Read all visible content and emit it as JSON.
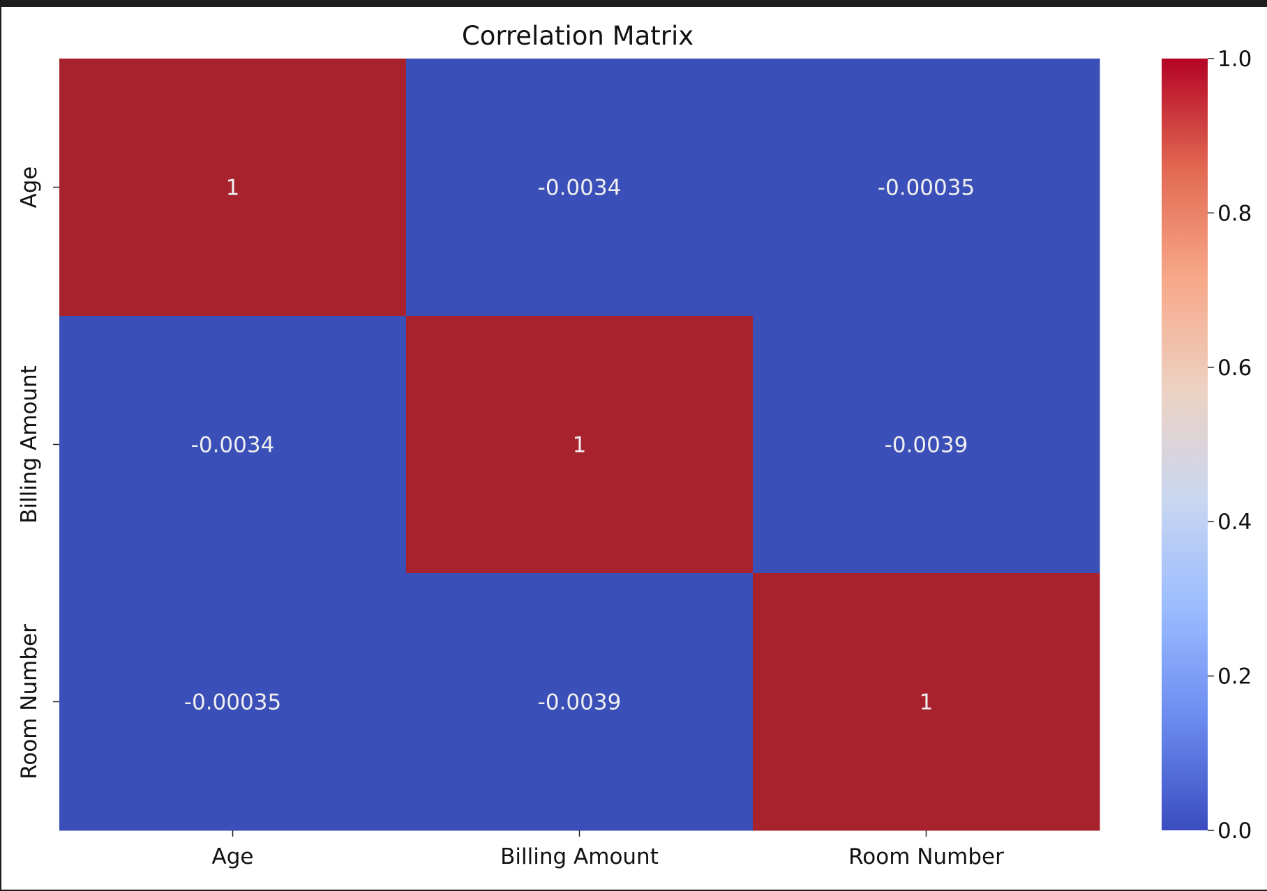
{
  "chart_data": {
    "type": "heatmap",
    "title": "Correlation Matrix",
    "x_labels": [
      "Age",
      "Billing Amount",
      "Room Number"
    ],
    "y_labels": [
      "Age",
      "Billing Amount",
      "Room Number"
    ],
    "values": [
      [
        1,
        -0.0034,
        -0.00035
      ],
      [
        -0.0034,
        1,
        -0.0039
      ],
      [
        -0.00035,
        -0.0039,
        1
      ]
    ],
    "annotations": [
      [
        "1",
        "-0.0034",
        "-0.00035"
      ],
      [
        "-0.0034",
        "1",
        "-0.0039"
      ],
      [
        "-0.00035",
        "-0.0039",
        "1"
      ]
    ],
    "colormap": "coolwarm",
    "color_range": [
      0.0,
      1.0
    ],
    "colorbar_ticks": [
      {
        "value": 1.0,
        "label": "1.0"
      },
      {
        "value": 0.8,
        "label": "0.8"
      },
      {
        "value": 0.6,
        "label": "0.6"
      },
      {
        "value": 0.4,
        "label": "0.4"
      },
      {
        "value": 0.2,
        "label": "0.2"
      },
      {
        "value": 0.0,
        "label": "0.0"
      }
    ],
    "colorbar_colors": [
      "#3b4cc0",
      "#6a8bef",
      "#9abbff",
      "#c9d7f0",
      "#edd1c2",
      "#f7a889",
      "#e26952",
      "#b40426"
    ],
    "high_color": "#a8222d",
    "low_color": "#3a4fb7",
    "annotation_color": "#f0f0f0"
  }
}
